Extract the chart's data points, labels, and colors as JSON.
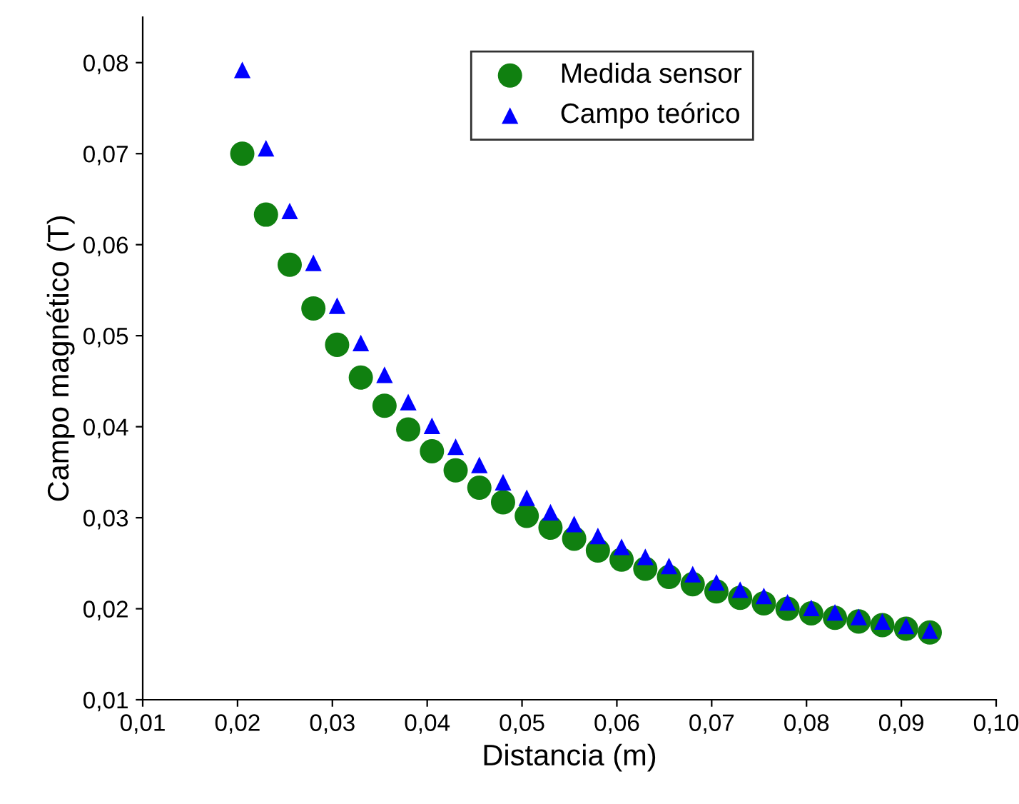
{
  "chart_data": {
    "type": "scatter",
    "xlabel": "Distancia (m)",
    "ylabel": "Campo magnético (T)",
    "x": [
      0.0205,
      0.023,
      0.0255,
      0.028,
      0.0305,
      0.033,
      0.0355,
      0.038,
      0.0405,
      0.043,
      0.0455,
      0.048,
      0.0505,
      0.053,
      0.0555,
      0.058,
      0.0605,
      0.063,
      0.0655,
      0.068,
      0.0705,
      0.073,
      0.0755,
      0.078,
      0.0805,
      0.083,
      0.0855,
      0.088,
      0.0905,
      0.093
    ],
    "series": [
      {
        "name": "Medida sensor",
        "color": "#108010",
        "marker": "circle",
        "values": [
          0.07,
          0.0633,
          0.0578,
          0.053,
          0.049,
          0.0454,
          0.0423,
          0.0397,
          0.0373,
          0.0352,
          0.0333,
          0.0317,
          0.0302,
          0.0289,
          0.0277,
          0.0264,
          0.0254,
          0.0244,
          0.0235,
          0.0227,
          0.0219,
          0.0212,
          0.0206,
          0.02,
          0.0195,
          0.019,
          0.0186,
          0.0182,
          0.0178,
          0.0174
        ]
      },
      {
        "name": "Campo teórico",
        "color": "#0000ff",
        "marker": "triangle",
        "values": [
          0.0792,
          0.0706,
          0.0637,
          0.058,
          0.0533,
          0.0492,
          0.0457,
          0.0427,
          0.0401,
          0.0378,
          0.0358,
          0.0339,
          0.0322,
          0.0306,
          0.0293,
          0.028,
          0.0268,
          0.0257,
          0.0247,
          0.0238,
          0.0229,
          0.0221,
          0.0214,
          0.0207,
          0.0201,
          0.0196,
          0.0191,
          0.0186,
          0.0181,
          0.0176
        ]
      }
    ],
    "xlim": [
      0.01,
      0.1
    ],
    "xticks": [
      {
        "value": 0.01,
        "label": "0,01"
      },
      {
        "value": 0.02,
        "label": "0,02"
      },
      {
        "value": 0.03,
        "label": "0,03"
      },
      {
        "value": 0.04,
        "label": "0,04"
      },
      {
        "value": 0.05,
        "label": "0,05"
      },
      {
        "value": 0.06,
        "label": "0,06"
      },
      {
        "value": 0.07,
        "label": "0,07"
      },
      {
        "value": 0.08,
        "label": "0,08"
      },
      {
        "value": 0.09,
        "label": "0,09"
      },
      {
        "value": 0.1,
        "label": "0,10"
      }
    ],
    "ylim": [
      0.01,
      0.085
    ],
    "yticks": [
      {
        "value": 0.01,
        "label": "0,01"
      },
      {
        "value": 0.02,
        "label": "0,02"
      },
      {
        "value": 0.03,
        "label": "0,03"
      },
      {
        "value": 0.04,
        "label": "0,04"
      },
      {
        "value": 0.05,
        "label": "0,05"
      },
      {
        "value": 0.06,
        "label": "0,06"
      },
      {
        "value": 0.07,
        "label": "0,07"
      },
      {
        "value": 0.08,
        "label": "0,08"
      }
    ],
    "grid": false,
    "legend": "top right"
  }
}
